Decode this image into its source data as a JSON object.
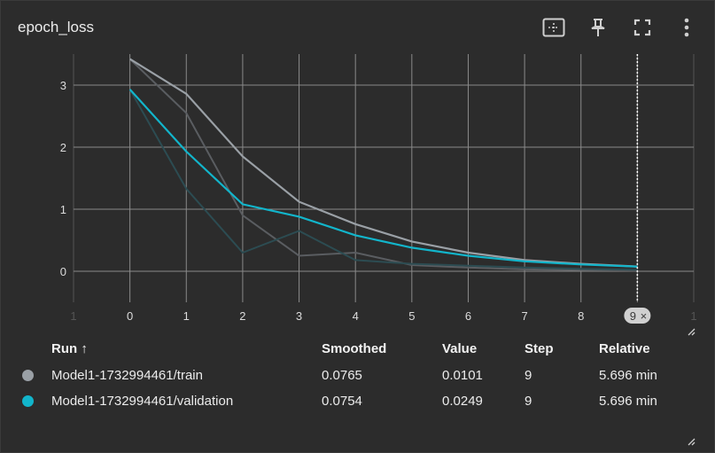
{
  "card": {
    "title": "epoch_loss"
  },
  "toolbar": {
    "fit_icon": "fit-domain-icon",
    "pin_icon": "pin-icon",
    "fullscreen_icon": "fullscreen-icon",
    "more_icon": "more-vert-icon"
  },
  "chart_data": {
    "type": "line",
    "title": "epoch_loss",
    "xlabel": "",
    "ylabel": "",
    "x_ticks": [
      "1",
      "0",
      "1",
      "2",
      "3",
      "4",
      "5",
      "6",
      "7",
      "8",
      "9",
      "1"
    ],
    "xlim": [
      -1,
      10
    ],
    "ylim": [
      -0.5,
      3.5
    ],
    "y_ticks": [
      "0",
      "1",
      "2",
      "3"
    ],
    "grid": true,
    "hover_step_label": "9",
    "hover_step_value": 9,
    "series": [
      {
        "name": "Model1-1732994461/train",
        "color": "#9aa0a6",
        "raw_color": "#5a5d61",
        "x": [
          0,
          1,
          2,
          3,
          4,
          5,
          6,
          7,
          8,
          9
        ],
        "smoothed": [
          3.42,
          2.86,
          1.85,
          1.12,
          0.76,
          0.48,
          0.3,
          0.18,
          0.12,
          0.0765
        ],
        "raw": [
          3.42,
          2.55,
          0.9,
          0.25,
          0.3,
          0.1,
          0.06,
          0.03,
          0.02,
          0.0101
        ]
      },
      {
        "name": "Model1-1732994461/validation",
        "color": "#12b5cb",
        "raw_color": "#2c4c52",
        "x": [
          0,
          1,
          2,
          3,
          4,
          5,
          6,
          7,
          8,
          9
        ],
        "smoothed": [
          2.93,
          1.93,
          1.08,
          0.88,
          0.58,
          0.38,
          0.25,
          0.16,
          0.11,
          0.0754
        ],
        "raw": [
          2.93,
          1.33,
          0.3,
          0.65,
          0.18,
          0.12,
          0.09,
          0.06,
          0.04,
          0.0249
        ]
      }
    ]
  },
  "table": {
    "headers": {
      "run": "Run ↑",
      "smoothed": "Smoothed",
      "value": "Value",
      "step": "Step",
      "relative": "Relative"
    },
    "rows": [
      {
        "color": "#9aa0a6",
        "run": "Model1-1732994461/train",
        "smoothed": "0.0765",
        "value": "0.0101",
        "step": "9",
        "relative": "5.696 min"
      },
      {
        "color": "#12b5cb",
        "run": "Model1-1732994461/validation",
        "smoothed": "0.0754",
        "value": "0.0249",
        "step": "9",
        "relative": "5.696 min"
      }
    ]
  }
}
